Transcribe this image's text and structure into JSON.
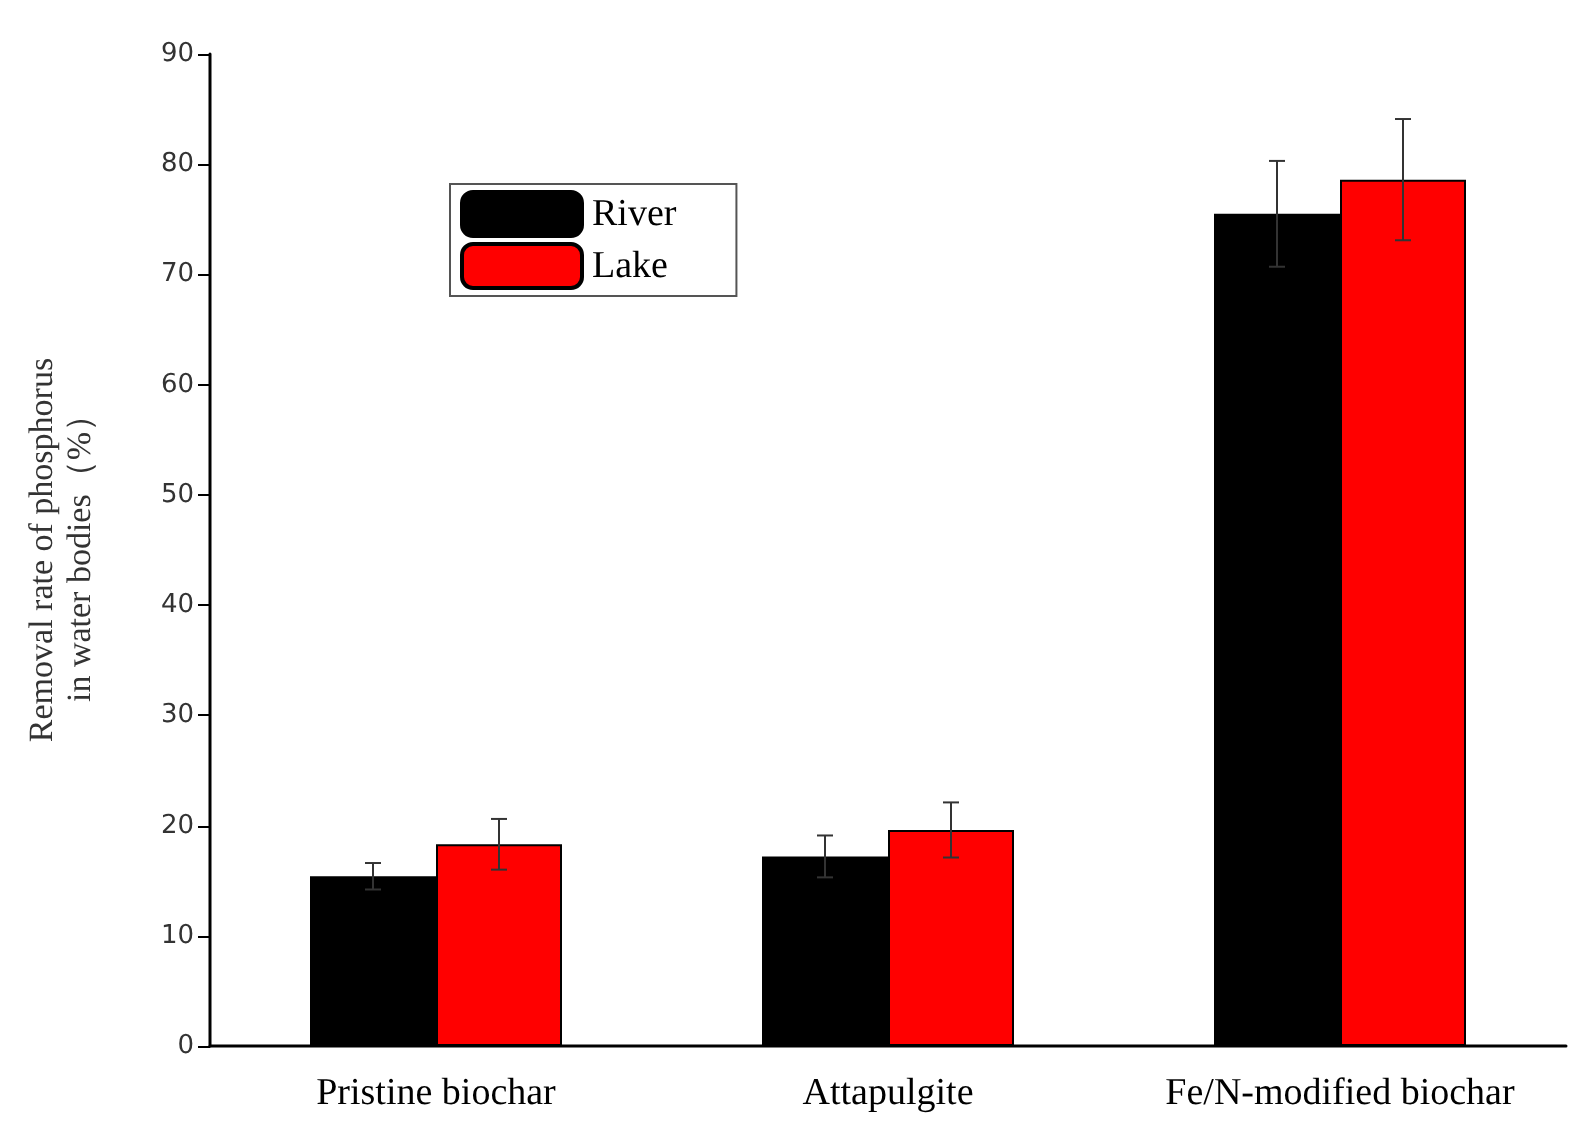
{
  "chart_data": {
    "type": "bar",
    "ylabel": "Removal rate of phosphorus in water bodies（%）",
    "categories": [
      "Pristine biochar",
      "Attapulgite",
      "Fe/N-modified biochar"
    ],
    "series": [
      {
        "name": "River",
        "color": "#000000",
        "values": [
          15.4,
          17.2,
          75.5
        ],
        "errors": [
          1.2,
          1.9,
          4.8
        ]
      },
      {
        "name": "Lake",
        "color": "#ff0000",
        "values": [
          18.3,
          19.6,
          78.6
        ],
        "errors": [
          2.3,
          2.5,
          5.5
        ]
      }
    ],
    "ylim": [
      0,
      90
    ],
    "yticks": [
      0,
      10,
      20,
      30,
      40,
      50,
      60,
      70,
      80,
      90
    ],
    "grid": false,
    "legend": "top left"
  }
}
